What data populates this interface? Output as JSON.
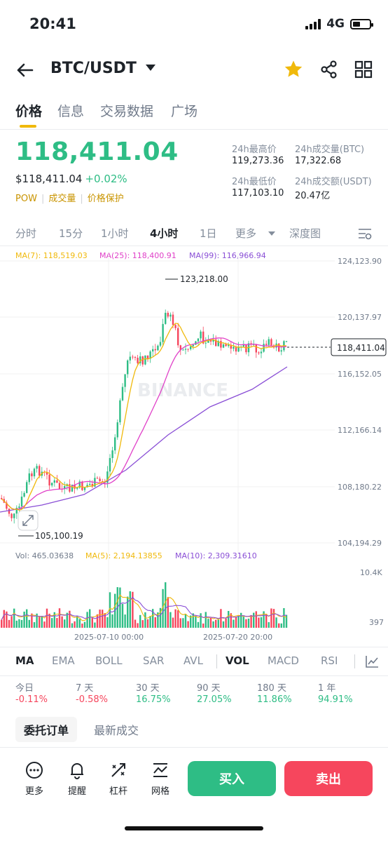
{
  "status": {
    "time": "20:41",
    "network": "4G"
  },
  "header": {
    "pair": "BTC/USDT",
    "icons": [
      "back-arrow-icon",
      "star-icon",
      "share-icon",
      "grid-icon"
    ],
    "star_color": "#f0b90b"
  },
  "tabs": [
    "价格",
    "信息",
    "交易数据",
    "广场"
  ],
  "price": {
    "last": "118,411.04",
    "usd": "$118,411.04",
    "change": "+0.02%",
    "tags": [
      "POW",
      "成交量",
      "价格保护"
    ],
    "stats": {
      "high_label": "24h最高价",
      "high": "119,273.36",
      "vol_btc_label": "24h成交量(BTC)",
      "vol_btc": "17,322.68",
      "low_label": "24h最低价",
      "low": "117,103.10",
      "vol_usdt_label": "24h成交额(USDT)",
      "vol_usdt": "20.47亿"
    }
  },
  "timeframes": {
    "items": [
      "分时",
      "15分",
      "1小时",
      "4小时",
      "1日",
      "更多",
      "深度图"
    ],
    "active": "4小时"
  },
  "chart": {
    "ma7": "MA(7): 118,519.03",
    "ma25": "MA(25): 118,400.91",
    "ma99": "MA(99): 116,966.94",
    "y_labels": [
      "124,123.90",
      "120,137.97",
      "116,152.05",
      "112,166.14",
      "108,180.22",
      "104,194.29"
    ],
    "high_marker": "123,218.00",
    "low_marker": "105,100.19",
    "current_price_tag": "118,411.04",
    "watermark": "BINANCE",
    "vol": "Vol: 465.03638",
    "vol_ma5": "MA(5): 2,194.13855",
    "vol_ma10": "MA(10): 2,309.31610",
    "vol_y_labels": [
      "10.4K",
      "397"
    ],
    "x_labels": [
      "2025-07-10 00:00",
      "2025-07-20 20:00"
    ],
    "colors": {
      "up": "#2ebd85",
      "down": "#f6465d",
      "ma7": "#f0b90b",
      "ma25": "#e040c8",
      "ma99": "#8a4fd6"
    }
  },
  "indicators": {
    "items": [
      "MA",
      "EMA",
      "BOLL",
      "SAR",
      "AVL",
      "VOL",
      "MACD",
      "RSI"
    ],
    "active": [
      "MA",
      "VOL"
    ]
  },
  "performance": [
    {
      "label": "今日",
      "value": "-0.11%",
      "dir": "neg"
    },
    {
      "label": "7 天",
      "value": "-0.58%",
      "dir": "neg"
    },
    {
      "label": "30 天",
      "value": "16.75%",
      "dir": "pos"
    },
    {
      "label": "90 天",
      "value": "27.05%",
      "dir": "pos"
    },
    {
      "label": "180 天",
      "value": "11.86%",
      "dir": "pos"
    },
    {
      "label": "1 年",
      "value": "94.91%",
      "dir": "pos"
    }
  ],
  "order_tabs": {
    "active": "委托订单",
    "other": "最新成交"
  },
  "bottom": {
    "items": [
      {
        "label": "更多",
        "icon": "more-icon"
      },
      {
        "label": "提醒",
        "icon": "bell-icon"
      },
      {
        "label": "杠杆",
        "icon": "leverage-icon"
      },
      {
        "label": "网格",
        "icon": "grid-trading-icon"
      }
    ],
    "buy": "买入",
    "sell": "卖出",
    "buy_color": "#2ebd85",
    "sell_color": "#f6465d"
  }
}
